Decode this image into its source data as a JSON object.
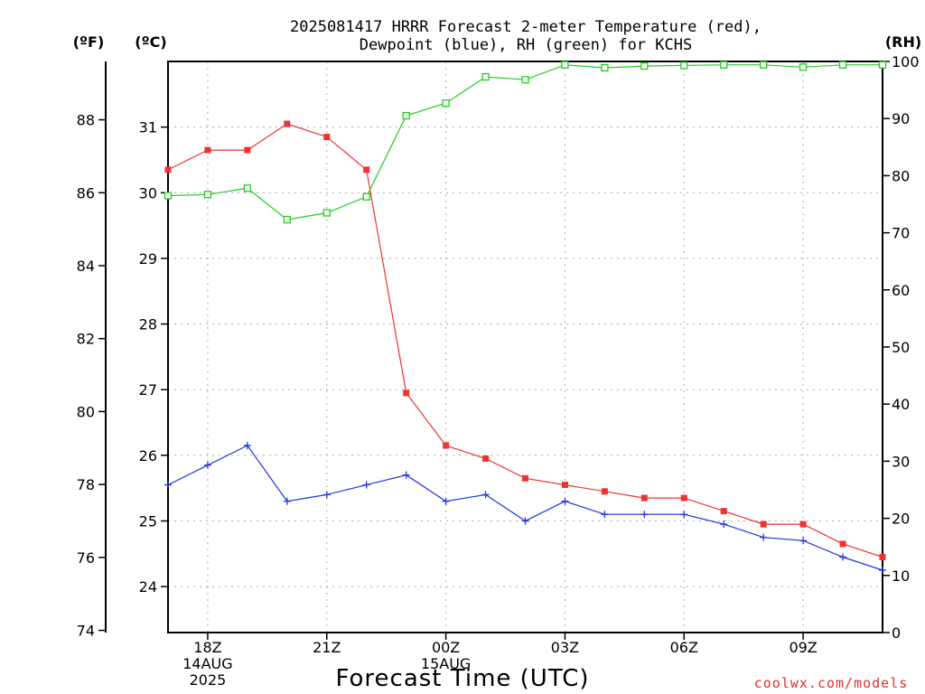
{
  "title": {
    "line1": "2025081417 HRRR Forecast 2-meter Temperature (red),",
    "line2": "Dewpoint (blue), RH (green) for KCHS"
  },
  "units": {
    "fahrenheit": "(ºF)",
    "celsius": "(ºC)",
    "rh": "(RH)"
  },
  "xlabel": "Forecast Time (UTC)",
  "credit": "coolwx.com/models",
  "colors": {
    "temperature": "#ee3333",
    "dewpoint": "#2233dd",
    "rh": "#22cc22",
    "grid": "#aaaaaa",
    "axis": "#000000"
  },
  "chart_data": {
    "type": "line",
    "title": "2025081417 HRRR Forecast 2-meter Temperature (red), Dewpoint (blue), RH (green) for KCHS",
    "xlabel": "Forecast Time (UTC)",
    "x": [
      "17Z 14AUG",
      "18Z 14AUG",
      "19Z 14AUG",
      "20Z 14AUG",
      "21Z 14AUG",
      "22Z 14AUG",
      "23Z 14AUG",
      "00Z 15AUG",
      "01Z 15AUG",
      "02Z 15AUG",
      "03Z 15AUG",
      "04Z 15AUG",
      "05Z 15AUG",
      "06Z 15AUG",
      "07Z 15AUG",
      "08Z 15AUG",
      "09Z 15AUG",
      "10Z 15AUG",
      "11Z 15AUG"
    ],
    "xticks": [
      {
        "index": 1,
        "lines": [
          "18Z",
          "14AUG",
          "2025"
        ]
      },
      {
        "index": 4,
        "lines": [
          "21Z"
        ]
      },
      {
        "index": 7,
        "lines": [
          "00Z",
          "15AUG"
        ]
      },
      {
        "index": 10,
        "lines": [
          "03Z"
        ]
      },
      {
        "index": 13,
        "lines": [
          "06Z"
        ]
      },
      {
        "index": 16,
        "lines": [
          "09Z"
        ]
      }
    ],
    "celsius_axis": {
      "range": [
        23.3,
        32.0
      ],
      "ticks": [
        24,
        25,
        26,
        27,
        28,
        29,
        30,
        31
      ]
    },
    "fahrenheit_axis": {
      "range": [
        73.94,
        89.6
      ],
      "ticks": [
        74,
        76,
        78,
        80,
        82,
        84,
        86,
        88
      ]
    },
    "rh_axis": {
      "range": [
        0,
        100
      ],
      "ticks": [
        0,
        10,
        20,
        30,
        40,
        50,
        60,
        70,
        80,
        90,
        100
      ]
    },
    "grid": true,
    "series": [
      {
        "axis": "celsius",
        "marker": "filled-square",
        "color": "#ee3333",
        "values": [
          30.35,
          30.65,
          30.65,
          31.05,
          30.85,
          30.35,
          26.95,
          26.15,
          25.95,
          25.65,
          25.55,
          25.45,
          25.35,
          25.35,
          25.15,
          24.95,
          24.95,
          24.65,
          24.45
        ]
      },
      {
        "axis": "celsius",
        "marker": "plus",
        "color": "#2233dd",
        "values": [
          25.55,
          25.85,
          26.15,
          25.3,
          25.4,
          25.55,
          25.7,
          25.3,
          25.4,
          25.0,
          25.3,
          25.1,
          25.1,
          25.1,
          24.95,
          24.75,
          24.7,
          24.45,
          24.25
        ]
      },
      {
        "axis": "rh",
        "marker": "open-square",
        "color": "#22cc22",
        "values": [
          76.5,
          76.7,
          77.8,
          72.3,
          73.5,
          76.3,
          90.5,
          92.7,
          97.3,
          96.8,
          99.4,
          98.9,
          99.2,
          99.3,
          99.4,
          99.4,
          99.0,
          99.4,
          99.4
        ]
      }
    ]
  }
}
